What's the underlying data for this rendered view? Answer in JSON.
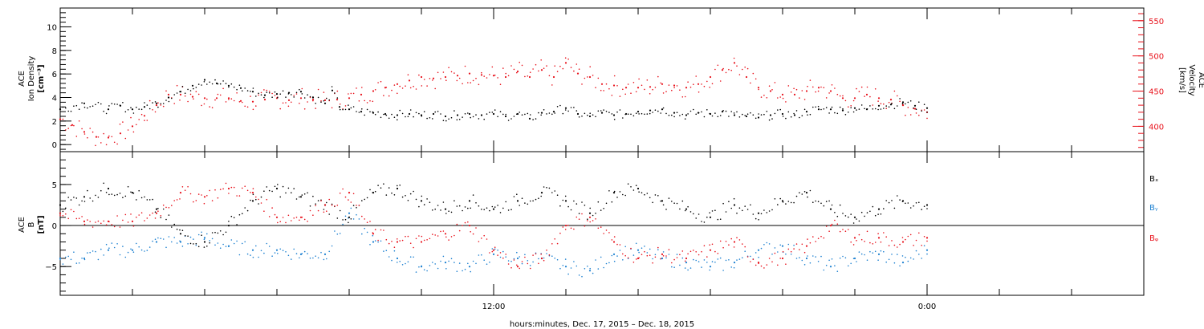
{
  "colors": {
    "black": "#000000",
    "red": "#e8101a",
    "blue": "#1a7fd0"
  },
  "chart_data": [
    {
      "type": "scatter",
      "panel": "top",
      "ylabel_lines": [
        "ACE",
        "Ion Density",
        "[cm⁻³]"
      ],
      "ylabel_right_lines": [
        "ACE",
        "Velocity",
        "[km/s]"
      ],
      "left_axis": {
        "ylim": [
          -0.6,
          11.6
        ],
        "ticks": [
          0,
          2,
          4,
          6,
          8,
          10
        ],
        "tick_labels": [
          "0",
          "2",
          "4",
          "6",
          "8",
          "10"
        ]
      },
      "right_axis": {
        "ylim": [
          364,
          568
        ],
        "ticks": [
          400,
          450,
          500,
          550
        ],
        "tick_labels": [
          "400",
          "450",
          "500",
          "550"
        ]
      },
      "xlim_hours": [
        0,
        45
      ],
      "series": [
        {
          "color": "black",
          "axis": "left",
          "x": [
            0,
            1,
            2,
            2.5,
            3,
            3.5,
            4,
            4.5,
            5,
            5.5,
            6,
            6.5,
            7,
            7.5,
            8,
            8.5,
            9,
            9.5,
            10,
            10.5,
            11,
            11.3,
            11.6,
            12,
            12.5,
            13,
            13.5,
            14,
            14.5,
            15,
            15.5,
            16,
            16.5,
            17,
            17.5,
            18,
            18.5,
            19,
            19.5,
            20,
            20.5,
            21,
            21.5,
            22,
            22.5,
            23,
            23.5,
            24,
            24.5,
            25,
            25.5,
            26,
            26.5,
            27,
            27.5,
            28,
            28.5,
            29,
            29.5,
            30,
            30.5,
            31,
            31.5,
            32,
            32.5,
            33,
            33.5,
            34,
            34.5,
            35,
            35.5,
            36
          ],
          "y": [
            3.0,
            3.5,
            3.0,
            3.3,
            3.0,
            3.2,
            3.5,
            4.0,
            4.5,
            5.0,
            5.5,
            5.2,
            5.0,
            4.8,
            4.5,
            4.2,
            4.3,
            4.4,
            4.5,
            4.0,
            3.5,
            4.6,
            3.2,
            3.0,
            2.8,
            2.7,
            2.6,
            2.5,
            2.6,
            2.5,
            2.6,
            2.4,
            2.5,
            2.6,
            2.5,
            2.6,
            2.4,
            2.6,
            2.2,
            2.7,
            2.8,
            3.1,
            2.6,
            2.4,
            2.7,
            2.5,
            2.6,
            2.8,
            2.9,
            3.0,
            2.7,
            2.5,
            2.7,
            2.6,
            2.8,
            2.5,
            2.4,
            2.3,
            2.5,
            2.6,
            2.5,
            2.8,
            3.0,
            3.0,
            2.9,
            3.1,
            3.0,
            3.3,
            3.4,
            3.6,
            3.3,
            3.1
          ]
        },
        {
          "color": "red",
          "axis": "right",
          "x": [
            0,
            0.5,
            1,
            1.5,
            2,
            2.5,
            3,
            3.5,
            4,
            4.5,
            5,
            5.5,
            6,
            6.5,
            7,
            7.5,
            8,
            8.5,
            9,
            9.5,
            10,
            10.5,
            11,
            11.5,
            12,
            12.5,
            13,
            13.5,
            14,
            14.5,
            15,
            15.5,
            16,
            16.5,
            17,
            17.5,
            18,
            18.5,
            19,
            19.5,
            20,
            20.5,
            21,
            21.5,
            22,
            22.5,
            23,
            23.5,
            24,
            24.5,
            25,
            25.5,
            26,
            26.5,
            27,
            27.5,
            28,
            28.5,
            29,
            29.5,
            30,
            30.5,
            31,
            31.5,
            32,
            32.5,
            33,
            33.5,
            34,
            34.5,
            35,
            35.5,
            36
          ],
          "y": [
            410,
            402,
            392,
            385,
            384,
            390,
            400,
            415,
            430,
            445,
            445,
            442,
            440,
            440,
            440,
            436,
            435,
            438,
            440,
            437,
            440,
            438,
            437,
            438,
            440,
            445,
            450,
            455,
            460,
            465,
            470,
            468,
            470,
            472,
            475,
            473,
            472,
            470,
            478,
            470,
            480,
            470,
            490,
            475,
            470,
            460,
            458,
            455,
            455,
            456,
            460,
            458,
            455,
            460,
            470,
            480,
            490,
            470,
            455,
            450,
            445,
            445,
            450,
            455,
            450,
            440,
            440,
            445,
            440,
            438,
            430,
            425,
            420
          ]
        }
      ]
    },
    {
      "type": "scatter",
      "panel": "bottom",
      "ylabel_lines": [
        "ACE",
        "B",
        "[nT]"
      ],
      "left_axis": {
        "ylim": [
          -8.5,
          9
        ],
        "ticks": [
          -5,
          0,
          5
        ],
        "tick_labels": [
          "−5",
          "0",
          "5"
        ]
      },
      "xlim_hours": [
        0,
        45
      ],
      "zero_line": true,
      "legend": [
        "Bₓ",
        "Bᵧ",
        "Bᵩ"
      ],
      "series": [
        {
          "name": "Bx",
          "color": "black",
          "x": [
            0,
            1,
            2,
            3,
            4,
            5,
            6,
            7,
            8,
            9,
            10,
            11,
            12,
            13,
            14,
            15,
            16,
            17,
            18,
            19,
            20,
            21,
            22,
            23,
            24,
            25,
            26,
            27,
            28,
            29,
            30,
            31,
            32,
            33,
            34,
            35,
            36
          ],
          "y": [
            2.5,
            3.5,
            4.5,
            4.0,
            2.0,
            -1.0,
            -2.0,
            0.0,
            3.0,
            4.5,
            3.5,
            2.5,
            1.0,
            4.0,
            4.5,
            3.0,
            2.0,
            3.0,
            2.0,
            3.0,
            4.0,
            3.0,
            1.5,
            4.0,
            4.5,
            3.0,
            2.0,
            1.0,
            2.5,
            1.5,
            3.0,
            4.0,
            2.0,
            1.0,
            2.0,
            3.0,
            2.5
          ]
        },
        {
          "name": "By",
          "color": "blue",
          "x": [
            0,
            1,
            2,
            3,
            4,
            5,
            6,
            7,
            8,
            9,
            10,
            11,
            12,
            13,
            14,
            15,
            16,
            17,
            18,
            19,
            20,
            21,
            22,
            23,
            24,
            25,
            26,
            27,
            28,
            29,
            30,
            31,
            32,
            33,
            34,
            35,
            36
          ],
          "y": [
            -4.0,
            -4.0,
            -3.0,
            -3.0,
            -2.0,
            -2.0,
            -1.5,
            -2.5,
            -3.0,
            -3.0,
            -3.5,
            -3.5,
            1.5,
            -2.0,
            -4.0,
            -5.0,
            -4.5,
            -5.0,
            -3.5,
            -4.0,
            -4.0,
            -5.0,
            -5.5,
            -3.5,
            -3.0,
            -4.0,
            -4.5,
            -5.0,
            -4.5,
            -3.0,
            -2.5,
            -4.0,
            -5.0,
            -4.0,
            -3.5,
            -4.5,
            -3.0
          ]
        },
        {
          "name": "Bz",
          "color": "red",
          "x": [
            0,
            1,
            2,
            3,
            4,
            5,
            6,
            7,
            8,
            9,
            10,
            11,
            12,
            13,
            14,
            15,
            16,
            17,
            18,
            19,
            20,
            21,
            22,
            23,
            24,
            25,
            26,
            27,
            28,
            29,
            30,
            31,
            32,
            33,
            34,
            35,
            36
          ],
          "y": [
            1.5,
            0.5,
            0.5,
            0.5,
            1.5,
            4.0,
            3.5,
            4.5,
            4.0,
            1.0,
            1.0,
            2.5,
            4.0,
            -1.0,
            -2.0,
            -2.0,
            -1.0,
            0.0,
            -3.0,
            -5.0,
            -4.0,
            0.0,
            1.0,
            -2.0,
            -4.0,
            -3.5,
            -4.0,
            -3.0,
            -2.0,
            -4.5,
            -4.0,
            -2.5,
            0.0,
            -1.5,
            -1.5,
            -2.0,
            -1.5
          ]
        }
      ]
    }
  ],
  "x_axis": {
    "xlim_hours": [
      0,
      45
    ],
    "ticks": [
      18,
      36
    ],
    "tick_labels": [
      "12:00",
      "0:00"
    ],
    "title": "hours:minutes, Dec. 17, 2015 – Dec. 18, 2015"
  }
}
